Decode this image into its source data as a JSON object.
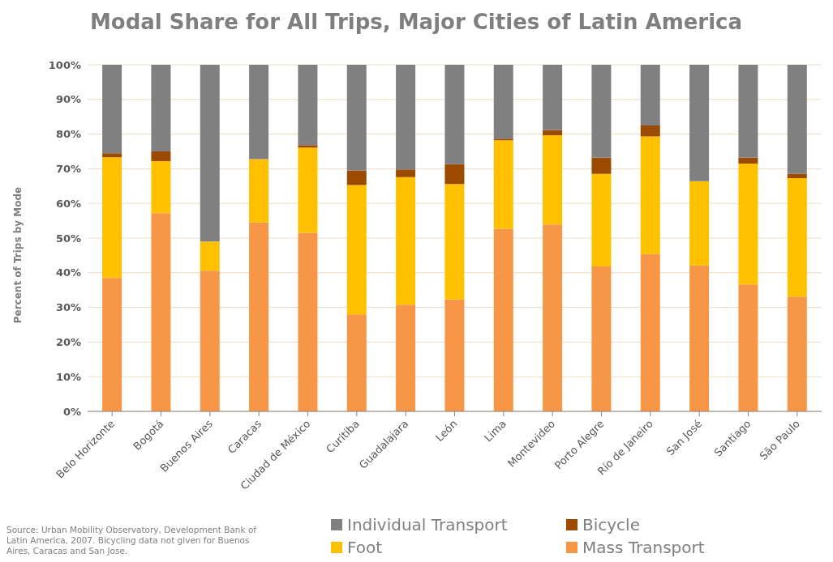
{
  "chart_data": {
    "type": "bar",
    "stacked": true,
    "title": "Modal Share for All Trips, Major Cities of Latin America",
    "ylabel": "Percent of Trips by Mode",
    "categories": [
      "Belo Horizonte",
      "Bogotá",
      "Buenos Aires",
      "Caracas",
      "Ciudad de México",
      "Curitiba",
      "Guadalajara",
      "León",
      "Lima",
      "Montevideo",
      "Porto Alegre",
      "Río de Janeiro",
      "San José",
      "Santiago",
      "São Paulo"
    ],
    "series": [
      {
        "name": "Mass Transport",
        "color": "#f79646",
        "values": [
          38.5,
          57.2,
          40.6,
          54.5,
          51.5,
          28,
          30.8,
          32.3,
          52.7,
          53.9,
          41.8,
          45.4,
          42.1,
          36.6,
          33.1
        ]
      },
      {
        "name": "Foot",
        "color": "#ffc000",
        "values": [
          34.8,
          15,
          8.4,
          18.3,
          24.6,
          37.3,
          36.8,
          33.3,
          25.5,
          25.8,
          26.7,
          33.9,
          24.3,
          34.9,
          34.2
        ]
      },
      {
        "name": "Bicycle",
        "color": "#9c4a00",
        "values": [
          1.2,
          2.8,
          null,
          null,
          0.7,
          4.2,
          2.2,
          5.7,
          0.5,
          1.5,
          4.7,
          3.2,
          null,
          1.7,
          1.3
        ]
      },
      {
        "name": "Individual Transport",
        "color": "#808080",
        "values": [
          25.5,
          25,
          51,
          27.2,
          23.2,
          30.5,
          30.2,
          28.7,
          21.3,
          18.8,
          26.8,
          17.5,
          33.6,
          26.8,
          31.4
        ]
      }
    ],
    "ylim": [
      0,
      100
    ],
    "yticks": [
      {
        "value": 0,
        "label": "0%"
      },
      {
        "value": 10,
        "label": "10%"
      },
      {
        "value": 20,
        "label": "20%"
      },
      {
        "value": 30,
        "label": "30%"
      },
      {
        "value": 40,
        "label": "40%"
      },
      {
        "value": 50,
        "label": "50%"
      },
      {
        "value": 60,
        "label": "60%"
      },
      {
        "value": 70,
        "label": "70%"
      },
      {
        "value": 80,
        "label": "80%"
      },
      {
        "value": 90,
        "label": "90%"
      },
      {
        "value": 100,
        "label": "100%"
      }
    ],
    "grid": "y",
    "legend": "bottom",
    "annotations": [
      "Source: Urban Mobility Observatory, Development Bank of Latin America, 2007. Bicycling data not given for Buenos Aires, Caracas and San Jose."
    ]
  }
}
